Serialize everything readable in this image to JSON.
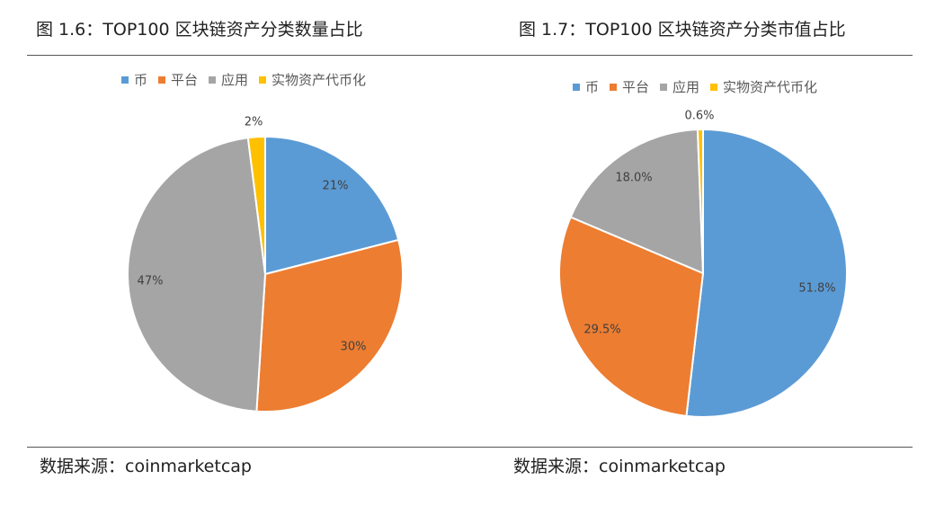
{
  "colors": {
    "coin": "#5B9BD5",
    "platform": "#ED7D31",
    "application": "#A5A5A5",
    "tokenized_assets": "#FFC000"
  },
  "chart_data": [
    {
      "type": "pie",
      "title": "图 1.6：TOP100 区块链资产分类数量占比",
      "categories": [
        "币",
        "平台",
        "应用",
        "实物资产代币化"
      ],
      "values": [
        21,
        30,
        47,
        2
      ],
      "labels": [
        "21%",
        "30%",
        "47%",
        "2%"
      ],
      "legend_position": "top",
      "source": "数据来源：coinmarketcap"
    },
    {
      "type": "pie",
      "title": "图 1.7：TOP100 区块链资产分类市值占比",
      "categories": [
        "币",
        "平台",
        "应用",
        "实物资产代币化"
      ],
      "values": [
        51.8,
        29.5,
        18.0,
        0.6
      ],
      "labels": [
        "51.8%",
        "29.5%",
        "18.0%",
        "0.6%"
      ],
      "legend_position": "top",
      "source": "数据来源：coinmarketcap"
    }
  ]
}
